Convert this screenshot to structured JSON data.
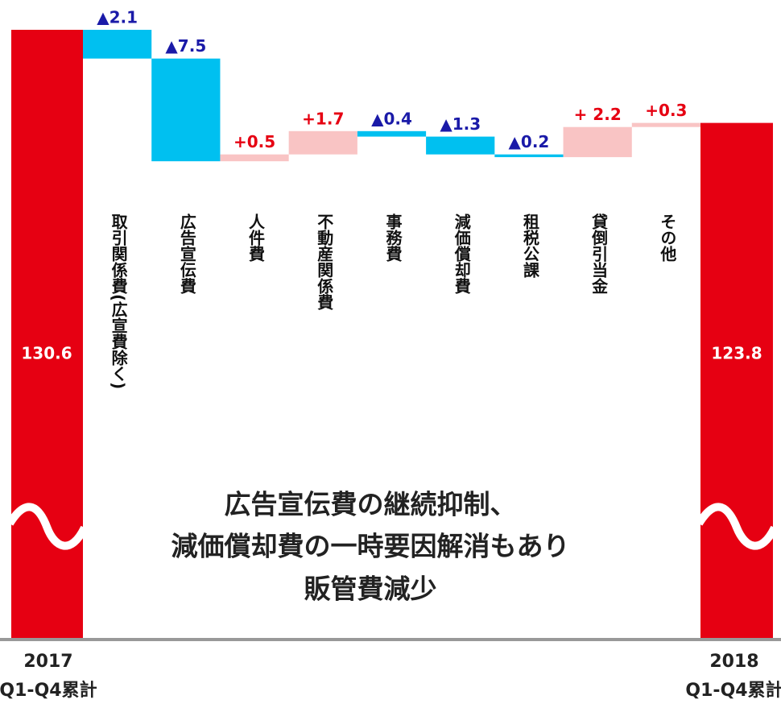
{
  "chart_data": {
    "type": "waterfall",
    "start": {
      "label": [
        "2017",
        "Q1-Q4累計"
      ],
      "value": 130.6,
      "color": "#e60012"
    },
    "end": {
      "label": [
        "2018",
        "Q1-Q4累計"
      ],
      "value": 123.8,
      "color": "#e60012"
    },
    "categories": [
      "取引関係費(広宣費除く)",
      "広告宣伝費",
      "人件費",
      "不動産関係費",
      "事務費",
      "減価償却費",
      "租税公課",
      "貸倒引当金",
      "その他"
    ],
    "values": [
      -2.1,
      -7.5,
      0.5,
      1.7,
      -0.4,
      -1.3,
      -0.2,
      2.2,
      0.3
    ],
    "value_labels": [
      "▲2.1",
      "▲7.5",
      "+0.5",
      "+1.7",
      "▲0.4",
      "▲1.3",
      "▲0.2",
      "+ 2.2",
      "+0.3"
    ],
    "decrease_color": "#00c0f0",
    "increase_color": "#f9c4c4",
    "decrease_label_color": "#1a1aa8",
    "increase_label_color": "#e60012",
    "annotation": [
      "広告宣伝費の継続抑制、",
      "減価償却費の一時要因解消もあり",
      "販管費減少"
    ]
  }
}
